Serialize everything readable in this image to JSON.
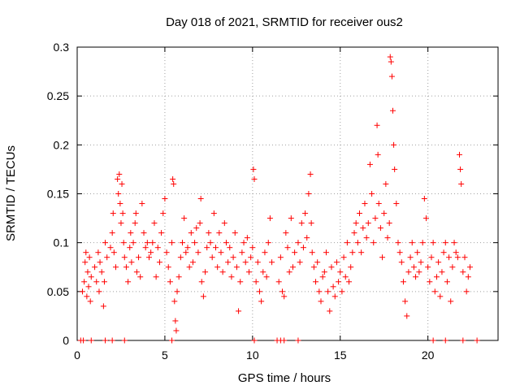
{
  "chart_data": {
    "type": "scatter",
    "title": "Day 018 of 2021, SRMTID for receiver ous2",
    "xlabel": "GPS time / hours",
    "ylabel": "SRMTID / TECUs",
    "xlim": [
      0,
      24
    ],
    "ylim": [
      0,
      0.3
    ],
    "xticks": [
      0,
      5,
      10,
      15,
      20
    ],
    "xtick_labels": [
      "0",
      "5",
      "10",
      "15",
      "20"
    ],
    "yticks": [
      0,
      0.05,
      0.1,
      0.15,
      0.2,
      0.25,
      0.3
    ],
    "ytick_labels": [
      "0",
      "0.05",
      "0.1",
      "0.15",
      "0.2",
      "0.25",
      "0.3"
    ],
    "grid": true,
    "marker": "+",
    "color": "#ff0000",
    "series": [
      {
        "name": "SRMTID",
        "points": [
          [
            0.3,
            0.05
          ],
          [
            0.4,
            0.06
          ],
          [
            0.45,
            0.08
          ],
          [
            0.5,
            0.09
          ],
          [
            0.55,
            0.045
          ],
          [
            0.6,
            0.07
          ],
          [
            0.65,
            0.055
          ],
          [
            0.7,
            0.085
          ],
          [
            0.75,
            0.04
          ],
          [
            0.8,
            0.065
          ],
          [
            1.0,
            0.075
          ],
          [
            1.1,
            0.06
          ],
          [
            1.2,
            0.09
          ],
          [
            1.25,
            0.05
          ],
          [
            1.3,
            0.08
          ],
          [
            1.4,
            0.07
          ],
          [
            1.5,
            0.035
          ],
          [
            1.55,
            0.06
          ],
          [
            1.6,
            0.1
          ],
          [
            1.7,
            0.085
          ],
          [
            1.9,
            0.095
          ],
          [
            2.0,
            0.11
          ],
          [
            2.05,
            0.13
          ],
          [
            2.1,
            0.09
          ],
          [
            2.2,
            0.075
          ],
          [
            2.3,
            0.165
          ],
          [
            2.35,
            0.15
          ],
          [
            2.4,
            0.17
          ],
          [
            2.45,
            0.14
          ],
          [
            2.5,
            0.12
          ],
          [
            2.55,
            0.16
          ],
          [
            2.6,
            0.13
          ],
          [
            2.65,
            0.1
          ],
          [
            2.7,
            0.085
          ],
          [
            2.8,
            0.075
          ],
          [
            2.9,
            0.06
          ],
          [
            3.0,
            0.095
          ],
          [
            3.05,
            0.11
          ],
          [
            3.1,
            0.08
          ],
          [
            3.2,
            0.1
          ],
          [
            3.3,
            0.12
          ],
          [
            3.35,
            0.13
          ],
          [
            3.4,
            0.07
          ],
          [
            3.5,
            0.085
          ],
          [
            3.6,
            0.065
          ],
          [
            3.7,
            0.14
          ],
          [
            3.8,
            0.11
          ],
          [
            3.9,
            0.095
          ],
          [
            4.0,
            0.1
          ],
          [
            4.1,
            0.085
          ],
          [
            4.2,
            0.09
          ],
          [
            4.3,
            0.1
          ],
          [
            4.4,
            0.12
          ],
          [
            4.5,
            0.065
          ],
          [
            4.6,
            0.095
          ],
          [
            4.7,
            0.08
          ],
          [
            4.8,
            0.11
          ],
          [
            4.9,
            0.13
          ],
          [
            5.0,
            0.145
          ],
          [
            5.1,
            0.09
          ],
          [
            5.2,
            0.075
          ],
          [
            5.3,
            0.06
          ],
          [
            5.4,
            0.1
          ],
          [
            5.45,
            0.165
          ],
          [
            5.5,
            0.16
          ],
          [
            5.55,
            0.04
          ],
          [
            5.6,
            0.02
          ],
          [
            5.65,
            0.01
          ],
          [
            5.7,
            0.05
          ],
          [
            5.8,
            0.065
          ],
          [
            5.9,
            0.085
          ],
          [
            6.0,
            0.1
          ],
          [
            6.1,
            0.125
          ],
          [
            6.2,
            0.09
          ],
          [
            6.3,
            0.095
          ],
          [
            6.4,
            0.075
          ],
          [
            6.5,
            0.11
          ],
          [
            6.6,
            0.08
          ],
          [
            6.7,
            0.1
          ],
          [
            6.8,
            0.115
          ],
          [
            6.9,
            0.09
          ],
          [
            7.0,
            0.12
          ],
          [
            7.05,
            0.145
          ],
          [
            7.1,
            0.06
          ],
          [
            7.2,
            0.045
          ],
          [
            7.3,
            0.07
          ],
          [
            7.4,
            0.095
          ],
          [
            7.5,
            0.11
          ],
          [
            7.6,
            0.1
          ],
          [
            7.7,
            0.085
          ],
          [
            7.8,
            0.13
          ],
          [
            7.9,
            0.095
          ],
          [
            8.0,
            0.075
          ],
          [
            8.1,
            0.11
          ],
          [
            8.2,
            0.09
          ],
          [
            8.3,
            0.07
          ],
          [
            8.4,
            0.12
          ],
          [
            8.5,
            0.1
          ],
          [
            8.6,
            0.08
          ],
          [
            8.7,
            0.095
          ],
          [
            8.8,
            0.065
          ],
          [
            8.9,
            0.085
          ],
          [
            9.0,
            0.11
          ],
          [
            9.1,
            0.075
          ],
          [
            9.2,
            0.03
          ],
          [
            9.3,
            0.06
          ],
          [
            9.4,
            0.09
          ],
          [
            9.5,
            0.1
          ],
          [
            9.6,
            0.08
          ],
          [
            9.7,
            0.105
          ],
          [
            9.8,
            0.07
          ],
          [
            9.9,
            0.085
          ],
          [
            10.0,
            0.095
          ],
          [
            10.05,
            0.175
          ],
          [
            10.1,
            0.165
          ],
          [
            10.2,
            0.06
          ],
          [
            10.3,
            0.08
          ],
          [
            10.4,
            0.05
          ],
          [
            10.5,
            0.04
          ],
          [
            10.6,
            0.07
          ],
          [
            10.7,
            0.09
          ],
          [
            10.8,
            0.065
          ],
          [
            10.9,
            0.1
          ],
          [
            11.0,
            0.125
          ],
          [
            11.1,
            0.08
          ],
          [
            11.5,
            0.06
          ],
          [
            11.6,
            0.085
          ],
          [
            11.7,
            0.05
          ],
          [
            11.8,
            0.045
          ],
          [
            11.9,
            0.11
          ],
          [
            12.0,
            0.095
          ],
          [
            12.1,
            0.07
          ],
          [
            12.2,
            0.125
          ],
          [
            12.3,
            0.075
          ],
          [
            12.4,
            0.09
          ],
          [
            12.6,
            0.1
          ],
          [
            12.7,
            0.08
          ],
          [
            12.8,
            0.12
          ],
          [
            12.9,
            0.095
          ],
          [
            13.0,
            0.13
          ],
          [
            13.1,
            0.105
          ],
          [
            13.2,
            0.15
          ],
          [
            13.3,
            0.17
          ],
          [
            13.35,
            0.12
          ],
          [
            13.4,
            0.09
          ],
          [
            13.5,
            0.075
          ],
          [
            13.6,
            0.06
          ],
          [
            13.7,
            0.08
          ],
          [
            13.8,
            0.05
          ],
          [
            13.9,
            0.04
          ],
          [
            14.0,
            0.065
          ],
          [
            14.1,
            0.07
          ],
          [
            14.2,
            0.09
          ],
          [
            14.3,
            0.05
          ],
          [
            14.4,
            0.03
          ],
          [
            14.5,
            0.075
          ],
          [
            14.6,
            0.055
          ],
          [
            14.7,
            0.045
          ],
          [
            14.8,
            0.08
          ],
          [
            14.9,
            0.06
          ],
          [
            15.0,
            0.07
          ],
          [
            15.1,
            0.05
          ],
          [
            15.2,
            0.085
          ],
          [
            15.3,
            0.065
          ],
          [
            15.4,
            0.1
          ],
          [
            15.5,
            0.06
          ],
          [
            15.6,
            0.075
          ],
          [
            15.7,
            0.09
          ],
          [
            15.8,
            0.11
          ],
          [
            15.9,
            0.12
          ],
          [
            16.0,
            0.1
          ],
          [
            16.1,
            0.13
          ],
          [
            16.2,
            0.09
          ],
          [
            16.3,
            0.115
          ],
          [
            16.4,
            0.14
          ],
          [
            16.5,
            0.105
          ],
          [
            16.6,
            0.12
          ],
          [
            16.7,
            0.18
          ],
          [
            16.8,
            0.15
          ],
          [
            16.9,
            0.1
          ],
          [
            17.0,
            0.125
          ],
          [
            17.1,
            0.22
          ],
          [
            17.15,
            0.19
          ],
          [
            17.2,
            0.14
          ],
          [
            17.3,
            0.115
          ],
          [
            17.4,
            0.085
          ],
          [
            17.5,
            0.13
          ],
          [
            17.6,
            0.16
          ],
          [
            17.7,
            0.105
          ],
          [
            17.8,
            0.12
          ],
          [
            17.85,
            0.29
          ],
          [
            17.9,
            0.285
          ],
          [
            17.95,
            0.27
          ],
          [
            18.0,
            0.235
          ],
          [
            18.05,
            0.2
          ],
          [
            18.1,
            0.175
          ],
          [
            18.2,
            0.14
          ],
          [
            18.3,
            0.1
          ],
          [
            18.4,
            0.09
          ],
          [
            18.5,
            0.08
          ],
          [
            18.6,
            0.06
          ],
          [
            18.7,
            0.04
          ],
          [
            18.8,
            0.025
          ],
          [
            18.9,
            0.07
          ],
          [
            19.0,
            0.085
          ],
          [
            19.1,
            0.1
          ],
          [
            19.2,
            0.075
          ],
          [
            19.3,
            0.065
          ],
          [
            19.4,
            0.09
          ],
          [
            19.5,
            0.07
          ],
          [
            19.6,
            0.08
          ],
          [
            19.7,
            0.1
          ],
          [
            19.8,
            0.145
          ],
          [
            19.9,
            0.125
          ],
          [
            20.0,
            0.075
          ],
          [
            20.1,
            0.06
          ],
          [
            20.2,
            0.085
          ],
          [
            20.3,
            0.1
          ],
          [
            20.4,
            0.05
          ],
          [
            20.5,
            0.065
          ],
          [
            20.6,
            0.08
          ],
          [
            20.7,
            0.045
          ],
          [
            20.8,
            0.07
          ],
          [
            20.9,
            0.09
          ],
          [
            21.0,
            0.1
          ],
          [
            21.1,
            0.06
          ],
          [
            21.2,
            0.085
          ],
          [
            21.3,
            0.04
          ],
          [
            21.4,
            0.075
          ],
          [
            21.5,
            0.1
          ],
          [
            21.6,
            0.09
          ],
          [
            21.7,
            0.085
          ],
          [
            21.8,
            0.19
          ],
          [
            21.85,
            0.175
          ],
          [
            21.9,
            0.16
          ],
          [
            22.0,
            0.07
          ],
          [
            22.1,
            0.085
          ],
          [
            22.2,
            0.05
          ],
          [
            22.3,
            0.065
          ],
          [
            22.4,
            0.075
          ],
          [
            0.2,
            0.0
          ],
          [
            0.35,
            0.0
          ],
          [
            0.8,
            0.0
          ],
          [
            1.6,
            0.0
          ],
          [
            2.0,
            0.0
          ],
          [
            2.7,
            0.0
          ],
          [
            5.4,
            0.0
          ],
          [
            10.1,
            0.0
          ],
          [
            11.4,
            0.0
          ],
          [
            11.6,
            0.0
          ],
          [
            11.8,
            0.0
          ],
          [
            12.6,
            0.0
          ],
          [
            20.3,
            0.0
          ],
          [
            21.0,
            0.0
          ],
          [
            22.0,
            0.0
          ],
          [
            22.8,
            0.0
          ]
        ]
      }
    ]
  }
}
